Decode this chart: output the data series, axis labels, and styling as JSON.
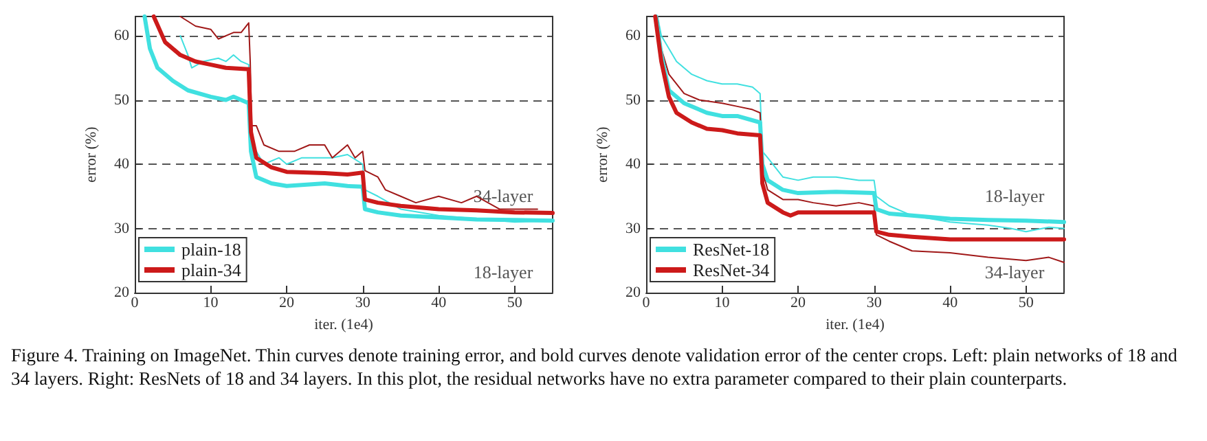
{
  "chart_data": [
    {
      "type": "line",
      "xlabel": "iter. (1e4)",
      "ylabel": "error (%)",
      "xlim": [
        0,
        55
      ],
      "ylim": [
        20,
        63
      ],
      "xticks": [
        0,
        10,
        20,
        30,
        40,
        50
      ],
      "yticks": [
        20,
        30,
        40,
        50,
        60
      ],
      "grid": "y",
      "legend": "bottom left",
      "marker": "none",
      "line_style": "solid",
      "series": [
        {
          "color": "#40e0e0",
          "x": [
            6,
            7,
            7.5,
            9,
            11,
            12,
            13,
            14,
            15,
            15.2,
            16,
            17,
            19,
            20,
            22,
            24,
            26,
            28,
            30,
            30.3,
            32,
            35,
            40,
            45,
            50,
            55
          ],
          "values": [
            60,
            57,
            55,
            56,
            56.5,
            56,
            57,
            56,
            55.5,
            44,
            42,
            40,
            41,
            40,
            41,
            41,
            41,
            41.5,
            40,
            36,
            35,
            33,
            32,
            31.5,
            31,
            31.2
          ]
        },
        {
          "color": "#a01818",
          "x": [
            6,
            8,
            10,
            11,
            13,
            14,
            15,
            15.2,
            15.4,
            16,
            17,
            19,
            21,
            23,
            25,
            26,
            28,
            29,
            30,
            30.3,
            32,
            33,
            35,
            37,
            40,
            43,
            45,
            48,
            50,
            53
          ],
          "values": [
            63,
            61.5,
            61,
            59.5,
            60.5,
            60.5,
            62,
            56,
            46,
            46,
            43,
            42,
            42,
            43,
            43,
            41,
            43,
            41,
            42,
            39,
            38,
            36,
            35,
            34,
            35,
            34,
            35,
            33,
            33,
            33
          ]
        },
        {
          "name": "plain-18",
          "color": "#40e0e0",
          "x": [
            1.3,
            2,
            3,
            5,
            7,
            10,
            12,
            13,
            15,
            15.3,
            16,
            18,
            20,
            25,
            28,
            30,
            30.3,
            32,
            35,
            40,
            45,
            50,
            55
          ],
          "values": [
            63,
            58,
            55,
            53,
            51.5,
            50.5,
            50,
            50.5,
            49.5,
            42,
            38,
            37,
            36.6,
            37,
            36.6,
            36.5,
            33,
            32.5,
            32,
            31.7,
            31.4,
            31.3,
            31.2
          ]
        },
        {
          "name": "plain-34",
          "color": "#cc1a1a",
          "x": [
            2.5,
            4,
            6,
            8,
            10,
            12,
            15,
            15.3,
            16,
            18,
            20,
            25,
            28,
            30,
            30.3,
            32,
            35,
            40,
            45,
            50,
            55
          ],
          "values": [
            63,
            59,
            57,
            56,
            55.5,
            55,
            54.8,
            45,
            41,
            39.5,
            38.8,
            38.6,
            38.4,
            38.7,
            34.5,
            34,
            33.5,
            33,
            32.8,
            32.5,
            32.4
          ]
        }
      ],
      "annotations": [
        "34-layer",
        "18-layer",
        "Figure 4. Training on ImageNet. Thin curves denote training error, and bold curves denote validation error of the center crops. Left: plain networks of 18 and 34 layers. Right: ResNets of 18 and 34 layers. In this plot, the residual networks have no extra parameter compared to their plain counterparts."
      ]
    },
    {
      "type": "line",
      "xlabel": "iter. (1e4)",
      "ylabel": "error (%)",
      "xlim": [
        0,
        55
      ],
      "ylim": [
        20,
        63
      ],
      "xticks": [
        0,
        10,
        20,
        30,
        40,
        50
      ],
      "yticks": [
        20,
        30,
        40,
        50,
        60
      ],
      "grid": "y",
      "legend": "bottom left",
      "marker": "none",
      "line_style": "solid",
      "series": [
        {
          "color": "#40e0e0",
          "x": [
            1.5,
            2,
            4,
            6,
            8,
            10,
            12,
            14,
            15,
            15.3,
            16,
            18,
            20,
            22,
            25,
            28,
            30,
            30.3,
            32,
            35,
            40,
            45,
            48,
            50,
            53,
            55
          ],
          "values": [
            63,
            60,
            56,
            54,
            53,
            52.5,
            52.5,
            52,
            51,
            42,
            41,
            38,
            37.5,
            38,
            38,
            37.5,
            37.5,
            35,
            33.5,
            32,
            31,
            30.5,
            30,
            29.5,
            30.2,
            30
          ]
        },
        {
          "color": "#a01818",
          "x": [
            1.5,
            2,
            3,
            5,
            7,
            10,
            12,
            14,
            15,
            15.3,
            16,
            18,
            20,
            22,
            25,
            28,
            30,
            30.3,
            32,
            35,
            40,
            45,
            50,
            53,
            55
          ],
          "values": [
            63,
            58,
            54,
            51,
            50,
            49.5,
            49,
            48.5,
            48,
            39,
            36,
            34.5,
            34.5,
            34,
            33.5,
            34,
            33.5,
            29,
            28,
            26.5,
            26.2,
            25.5,
            25,
            25.5,
            24.7
          ]
        },
        {
          "name": "ResNet-18",
          "color": "#40e0e0",
          "x": [
            1.3,
            2,
            3,
            5,
            8,
            10,
            12,
            15,
            15.3,
            16,
            18,
            20,
            25,
            30,
            30.3,
            32,
            35,
            40,
            45,
            50,
            55
          ],
          "values": [
            63,
            57,
            51.5,
            49.5,
            48,
            47.5,
            47.5,
            46.5,
            40,
            37.5,
            36,
            35.5,
            35.7,
            35.5,
            33,
            32.3,
            32,
            31.5,
            31.3,
            31.2,
            31
          ]
        },
        {
          "name": "ResNet-34",
          "color": "#cc1a1a",
          "x": [
            1.2,
            2,
            3,
            4,
            6,
            8,
            10,
            12,
            15,
            15.3,
            16,
            18,
            19,
            20,
            25,
            30,
            30.3,
            32,
            35,
            40,
            45,
            50,
            55
          ],
          "values": [
            63,
            56,
            50.5,
            48,
            46.5,
            45.5,
            45.3,
            44.8,
            44.5,
            37,
            34,
            32.5,
            32,
            32.5,
            32.5,
            32.5,
            29.5,
            29,
            28.7,
            28.3,
            28.3,
            28.3,
            28.3
          ]
        }
      ],
      "annotations": [
        "18-layer",
        "34-layer"
      ]
    }
  ]
}
